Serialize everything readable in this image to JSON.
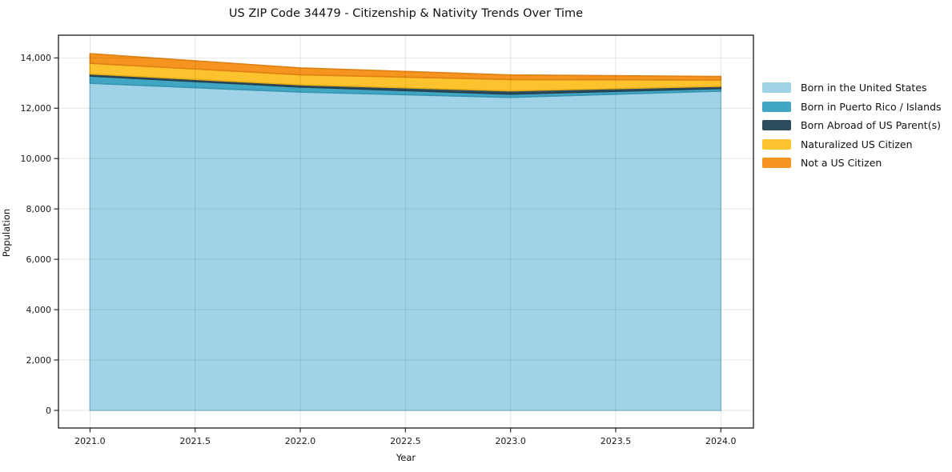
{
  "chart_data": {
    "type": "area",
    "stacked": true,
    "title": "US ZIP Code 34479 - Citizenship & Nativity Trends Over Time",
    "xlabel": "Year",
    "ylabel": "Population",
    "x": [
      2021,
      2022,
      2023,
      2024
    ],
    "series": [
      {
        "name": "Born in the United States",
        "color": "#A0D3E8",
        "edge_color": "#89C4DC",
        "values": [
          12990,
          12640,
          12430,
          12680
        ]
      },
      {
        "name": "Born in Puerto Rico / Islands",
        "color": "#40A6C3",
        "edge_color": "#3795B1",
        "values": [
          285,
          200,
          130,
          100
        ]
      },
      {
        "name": "Born Abroad of US Parent(s)",
        "color": "#2C4D5E",
        "edge_color": "#25404F",
        "values": [
          85,
          90,
          130,
          90
        ]
      },
      {
        "name": "Naturalized US Citizen",
        "color": "#FDC32E",
        "edge_color": "#EAAC15",
        "values": [
          425,
          400,
          450,
          250
        ]
      },
      {
        "name": "Not a US Citizen",
        "color": "#F5941E",
        "edge_color": "#DF8114",
        "values": [
          380,
          270,
          180,
          140
        ]
      }
    ],
    "totals": [
      14165,
      13600,
      13320,
      13260
    ],
    "xlim": [
      2020.85,
      2024.155
    ],
    "ylim": [
      -700,
      14900
    ],
    "xticks": [
      2021.0,
      2021.5,
      2022.0,
      2022.5,
      2023.0,
      2023.5,
      2024.0
    ],
    "xtick_labels": [
      "2021.0",
      "2021.5",
      "2022.0",
      "2022.5",
      "2023.0",
      "2023.5",
      "2024.0"
    ],
    "yticks": [
      0,
      2000,
      4000,
      6000,
      8000,
      10000,
      12000,
      14000
    ],
    "ytick_labels": [
      "0",
      "2,000",
      "4,000",
      "6,000",
      "8,000",
      "10,000",
      "12,000",
      "14,000"
    ],
    "grid": true,
    "grid_color": "rgba(0,0,0,0.10)",
    "spine_color": "#1a1a1a",
    "tick_color": "#1a1a1a",
    "legend_position": "right-outside"
  }
}
